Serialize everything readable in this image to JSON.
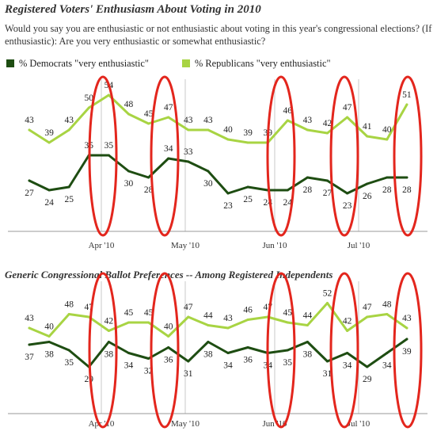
{
  "colors": {
    "democrats": "#1e4d12",
    "republicans": "#a8d443",
    "highlight": "#e3261d",
    "grid": "#c8c8c8"
  },
  "chart_data": [
    {
      "type": "line",
      "title": "Registered Voters' Enthusiasm About Voting in 2010",
      "question": "Would you say you are enthusiastic or not enthusiastic about voting in this year's congressional elections? (If enthusiastic): Are you very enthusiastic or somewhat enthusiastic?",
      "x_ticks": [
        "Apr '10",
        "May '10",
        "Jun '10",
        "Jul '10"
      ],
      "ylim": [
        15,
        60
      ],
      "series": [
        {
          "name": "% Democrats \"very enthusiastic\"",
          "values": [
            27,
            24,
            25,
            35,
            35,
            30,
            28,
            34,
            33,
            30,
            23,
            25,
            24,
            24,
            28,
            27,
            23,
            26,
            28,
            28
          ]
        },
        {
          "name": "% Republicans \"very enthusiastic\"",
          "values": [
            43,
            39,
            43,
            50,
            54,
            48,
            45,
            47,
            43,
            43,
            40,
            39,
            39,
            46,
            43,
            42,
            47,
            41,
            40,
            51
          ]
        }
      ]
    },
    {
      "type": "line",
      "title": "Generic Congressional Ballot Preferences -- Among Registered Independents",
      "x_ticks": [
        "Apr '10",
        "May '10",
        "Jun '10",
        "Jul '10"
      ],
      "ylim": [
        20,
        60
      ],
      "series": [
        {
          "values": [
            37,
            38,
            35,
            29,
            38,
            34,
            32,
            36,
            31,
            38,
            34,
            36,
            34,
            35,
            38,
            31,
            34,
            29,
            34,
            39
          ]
        },
        {
          "values": [
            43,
            40,
            48,
            47,
            42,
            45,
            45,
            40,
            47,
            44,
            43,
            46,
            47,
            45,
            44,
            52,
            42,
            47,
            48,
            43
          ]
        }
      ]
    }
  ]
}
